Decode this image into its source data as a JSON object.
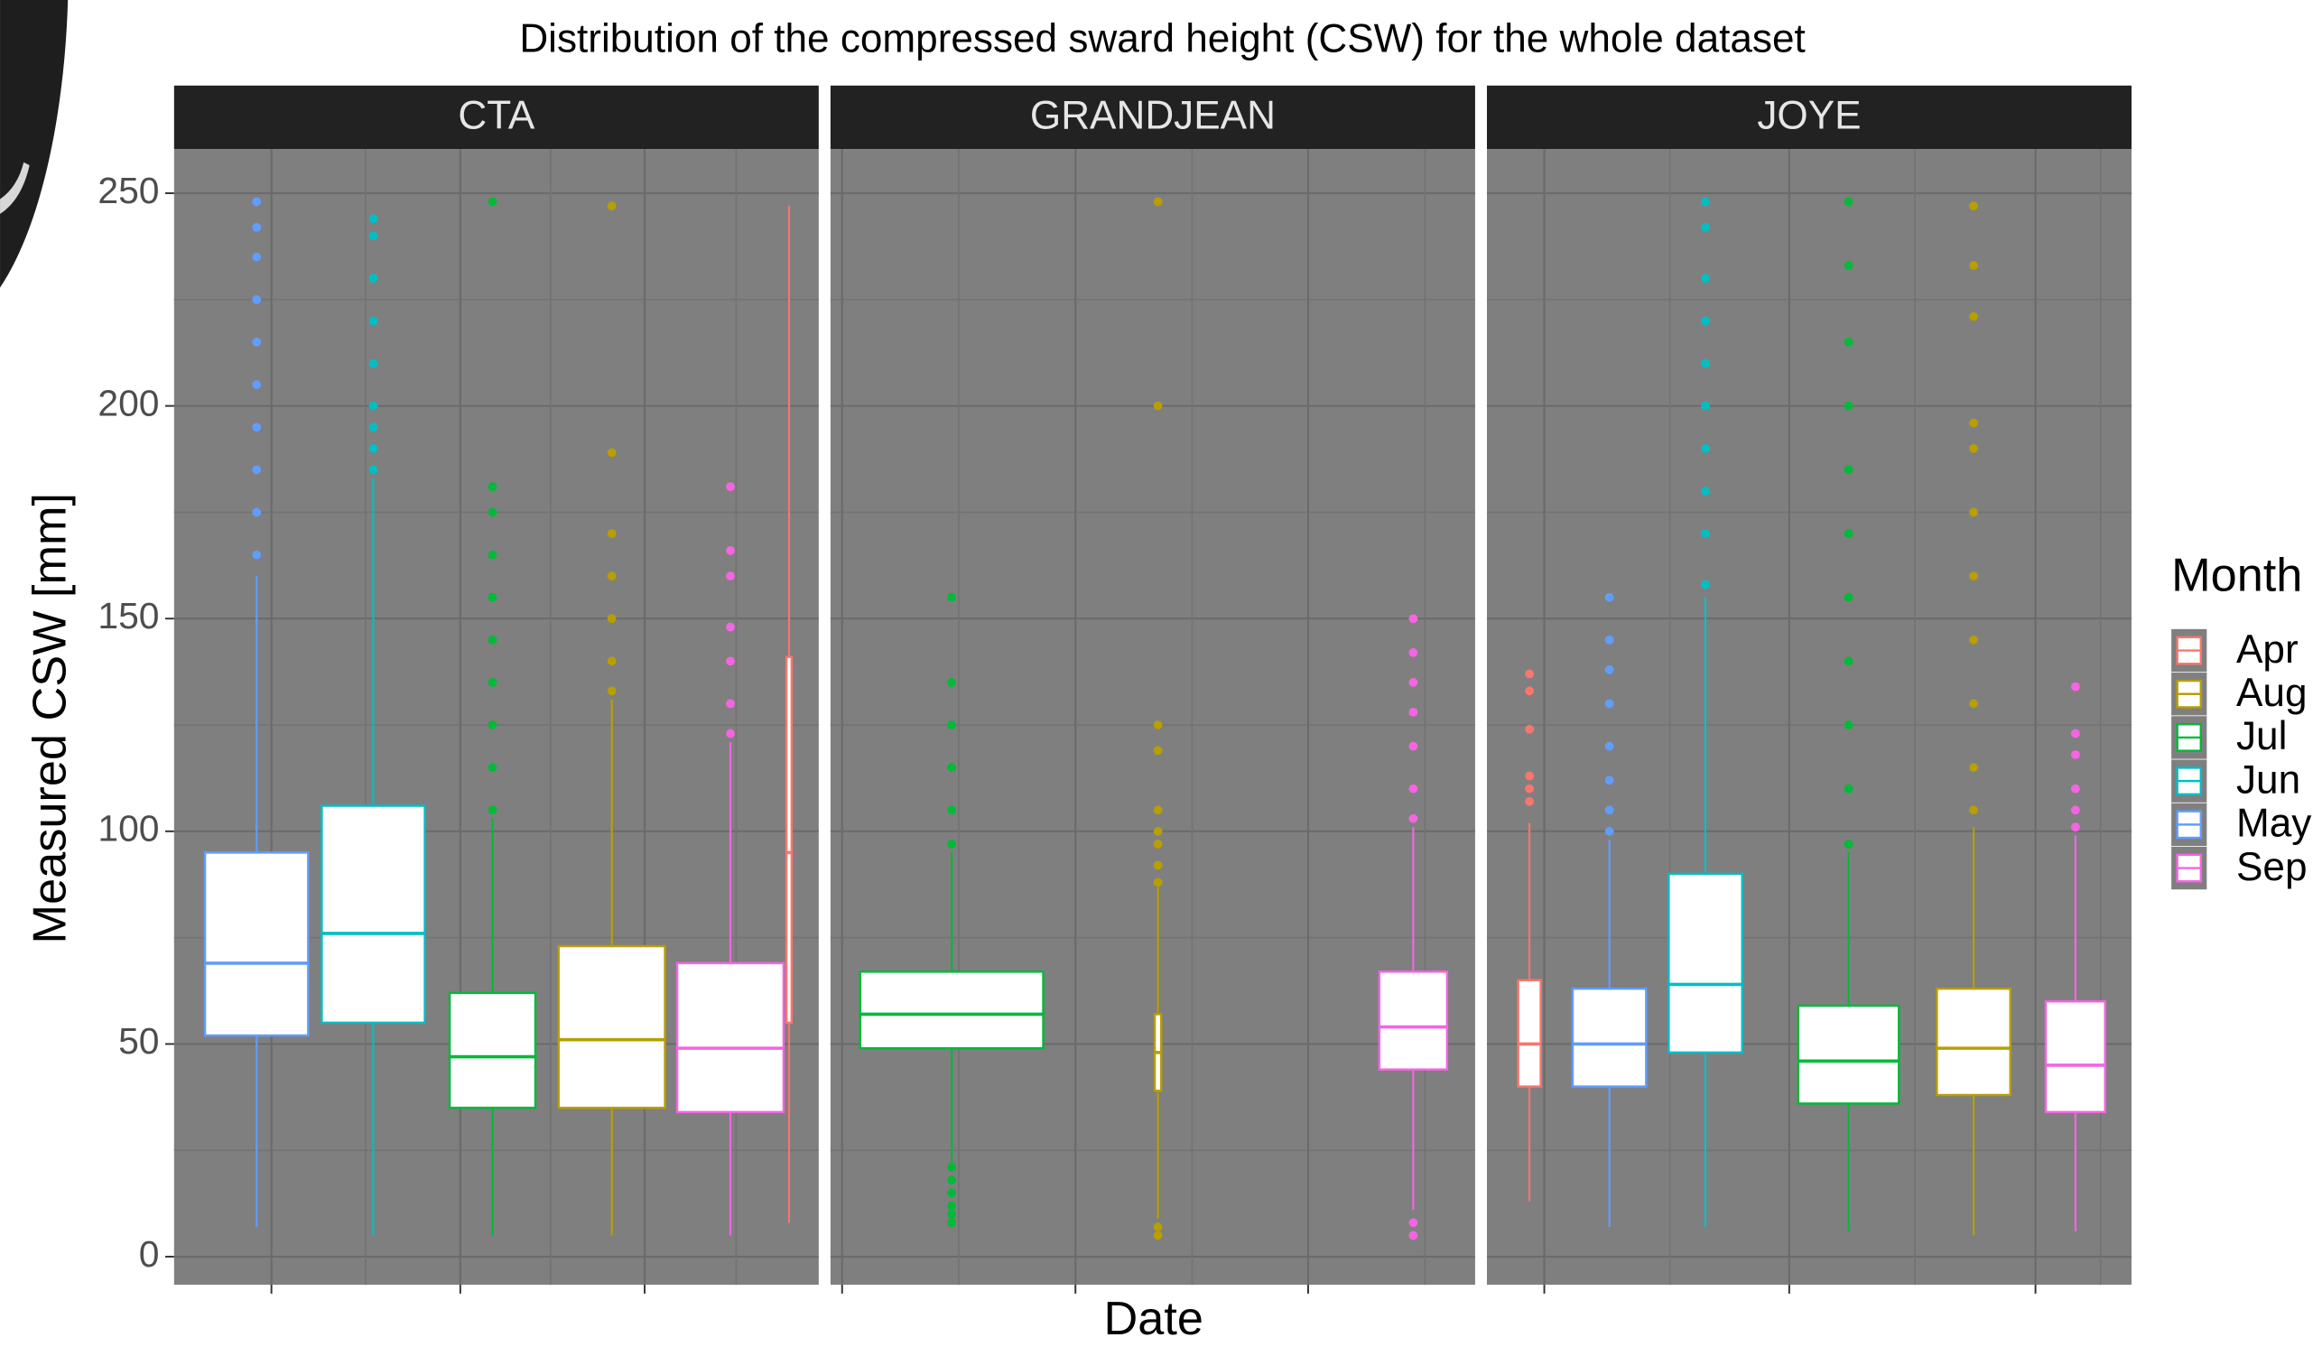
{
  "chart_data": {
    "type": "box",
    "title": "Distribution of the compressed sward height (CSW) for the whole dataset",
    "xlabel": "Date",
    "ylabel": "Measured CSW [mm]",
    "ylim": [
      -6.6,
      260.4
    ],
    "yticks": [
      0,
      50,
      100,
      150,
      200,
      250
    ],
    "grid": true,
    "legend_title": "Month",
    "legend_position": "right",
    "series": [
      {
        "name": "Apr",
        "color": "#f8766d"
      },
      {
        "name": "Aug",
        "color": "#b79f00"
      },
      {
        "name": "Jul",
        "color": "#00ba38"
      },
      {
        "name": "Jun",
        "color": "#00bfc4"
      },
      {
        "name": "May",
        "color": "#619cff"
      },
      {
        "name": "Sep",
        "color": "#f564e3"
      }
    ],
    "panels": [
      {
        "name": "CTA",
        "boxes": [
          {
            "month": "May",
            "min": 7,
            "q1": 52,
            "median": 69,
            "q3": 95,
            "max": 160,
            "outliers": [
              165,
              175,
              185,
              195,
              205,
              215,
              225,
              235,
              242,
              248
            ]
          },
          {
            "month": "Jun",
            "min": 5,
            "q1": 55,
            "median": 76,
            "q3": 106,
            "max": 183,
            "outliers": [
              185,
              190,
              195,
              200,
              210,
              220,
              230,
              240,
              244
            ]
          },
          {
            "month": "Jul",
            "min": 5,
            "q1": 35,
            "median": 47,
            "q3": 62,
            "max": 103,
            "outliers": [
              105,
              115,
              125,
              135,
              145,
              155,
              165,
              175,
              181,
              248
            ]
          },
          {
            "month": "Aug",
            "min": 5,
            "q1": 35,
            "median": 51,
            "q3": 73,
            "max": 131,
            "outliers": [
              133,
              140,
              150,
              160,
              170,
              189,
              247
            ]
          },
          {
            "month": "Sep",
            "min": 5,
            "q1": 34,
            "median": 49,
            "q3": 69,
            "max": 121,
            "outliers": [
              123,
              130,
              140,
              148,
              160,
              166,
              181
            ]
          },
          {
            "month": "Apr",
            "min": 8,
            "q1": 55,
            "median": 95,
            "q3": 141,
            "max": 247,
            "outliers": []
          }
        ]
      },
      {
        "name": "GRANDJEAN",
        "boxes": [
          {
            "month": "Jul",
            "min": 22,
            "q1": 49,
            "median": 57,
            "q3": 67,
            "max": 95,
            "outliers": [
              8,
              10,
              12,
              15,
              18,
              21,
              97,
              105,
              115,
              125,
              135,
              155
            ]
          },
          {
            "month": "Aug",
            "min": 9,
            "q1": 39,
            "median": 48,
            "q3": 57,
            "max": 87,
            "outliers": [
              5,
              7,
              88,
              92,
              97,
              100,
              105,
              119,
              125,
              200,
              248
            ]
          },
          {
            "month": "Sep",
            "min": 11,
            "q1": 44,
            "median": 54,
            "q3": 67,
            "max": 101,
            "outliers": [
              5,
              8,
              103,
              110,
              120,
              128,
              135,
              142,
              150
            ]
          }
        ]
      },
      {
        "name": "JOYE",
        "boxes": [
          {
            "month": "Apr",
            "min": 13,
            "q1": 40,
            "median": 50,
            "q3": 65,
            "max": 102,
            "outliers": [
              107,
              110,
              113,
              124,
              133,
              137
            ]
          },
          {
            "month": "May",
            "min": 7,
            "q1": 40,
            "median": 50,
            "q3": 63,
            "max": 98,
            "outliers": [
              100,
              105,
              112,
              120,
              130,
              138,
              145,
              155
            ]
          },
          {
            "month": "Jun",
            "min": 7,
            "q1": 48,
            "median": 64,
            "q3": 90,
            "max": 155,
            "outliers": [
              158,
              170,
              180,
              190,
              200,
              210,
              220,
              230,
              242,
              248
            ]
          },
          {
            "month": "Jul",
            "min": 6,
            "q1": 36,
            "median": 46,
            "q3": 59,
            "max": 95,
            "outliers": [
              97,
              110,
              125,
              140,
              155,
              170,
              185,
              200,
              215,
              233,
              248
            ]
          },
          {
            "month": "Aug",
            "min": 5,
            "q1": 38,
            "median": 49,
            "q3": 63,
            "max": 101,
            "outliers": [
              105,
              115,
              130,
              145,
              160,
              175,
              190,
              196,
              221,
              233,
              247
            ]
          },
          {
            "month": "Sep",
            "min": 6,
            "q1": 34,
            "median": 45,
            "q3": 60,
            "max": 99,
            "outliers": [
              101,
              105,
              110,
              118,
              123,
              134
            ]
          }
        ]
      }
    ]
  }
}
